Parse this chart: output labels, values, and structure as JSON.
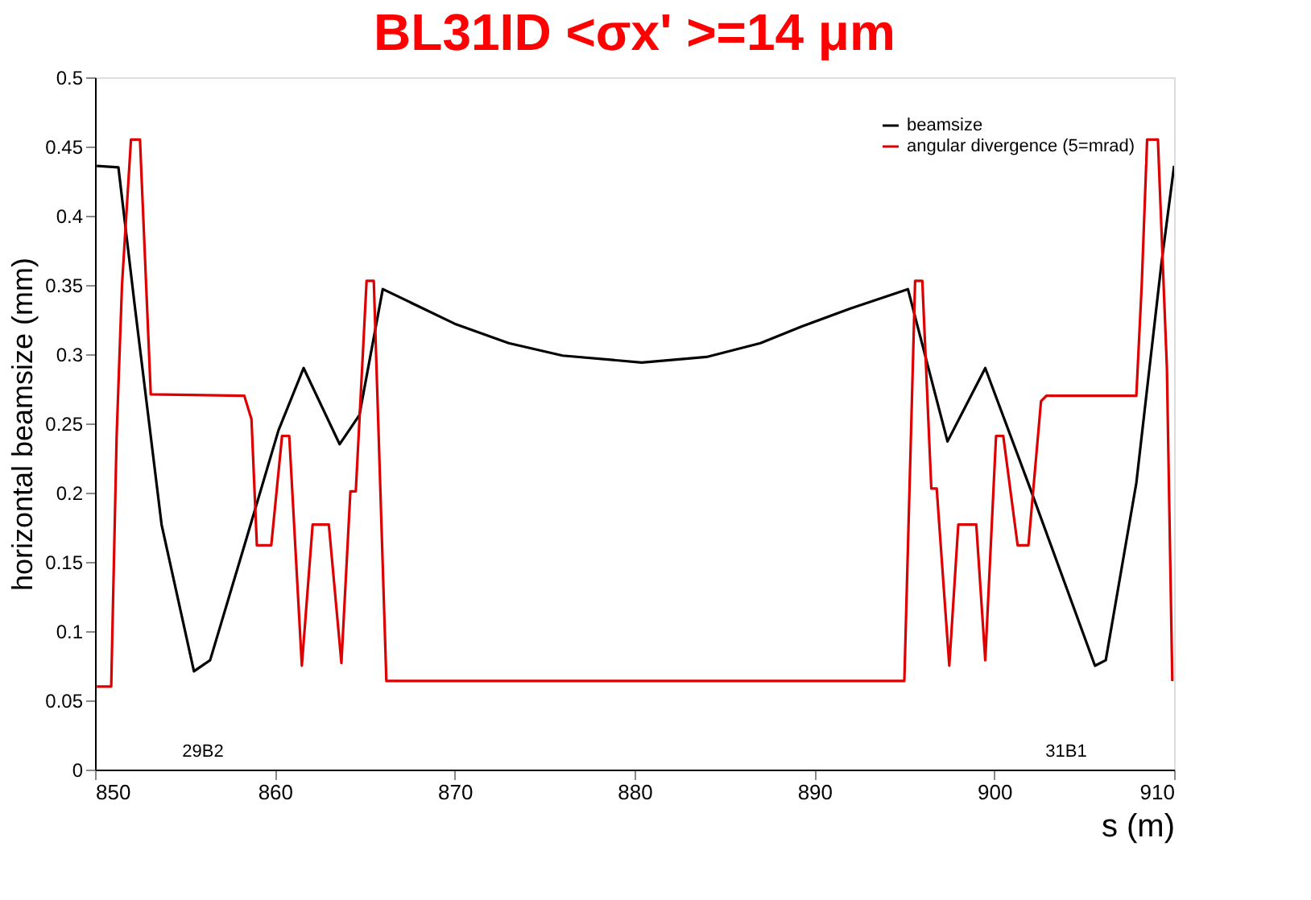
{
  "chart_data": {
    "type": "line",
    "title": "BL31ID    <σx' >=14 μm",
    "xlabel": "s (m)",
    "ylabel": "horizontal beamsize (mm)",
    "xlim": [
      850,
      910
    ],
    "xticks": [
      850,
      860,
      870,
      880,
      890,
      900,
      910
    ],
    "ylim": [
      0,
      0.5
    ],
    "yticks": [
      0,
      0.05,
      0.1,
      0.15,
      0.2,
      0.25,
      0.3,
      0.35,
      0.4,
      0.45,
      0.5
    ],
    "grid": false,
    "legend": "top right",
    "line_style": "solid",
    "annotations": [
      "29B2",
      "31B1"
    ],
    "series": [
      {
        "name": "beamsize",
        "color": "#000000",
        "x": [
          850.1,
          851.3,
          852.2,
          853.7,
          855.5,
          856.4,
          858.4,
          860.2,
          861.6,
          863.6,
          864.7,
          866.0,
          870.0,
          873.0,
          876.0,
          880.4,
          884.0,
          887.0,
          889.3,
          892.0,
          895.2,
          897.4,
          899.5,
          902.0,
          905.6,
          906.2,
          907.9,
          909.3,
          910.0
        ],
        "values": [
          0.436,
          0.435,
          0.336,
          0.177,
          0.071,
          0.079,
          0.166,
          0.245,
          0.29,
          0.235,
          0.256,
          0.347,
          0.322,
          0.308,
          0.299,
          0.294,
          0.298,
          0.308,
          0.32,
          0.333,
          0.347,
          0.237,
          0.29,
          0.203,
          0.075,
          0.079,
          0.207,
          0.366,
          0.436
        ]
      },
      {
        "name": "angular divergence (5=mrad)",
        "color": "#dd0000",
        "x": [
          850.1,
          850.9,
          851.2,
          851.5,
          852.0,
          852.5,
          853.1,
          858.3,
          858.7,
          859.0,
          859.8,
          860.4,
          860.8,
          861.5,
          862.1,
          863.0,
          863.7,
          864.2,
          864.5,
          865.1,
          865.5,
          866.2,
          895.0,
          895.6,
          896.0,
          896.5,
          896.8,
          897.5,
          898.0,
          899.0,
          899.5,
          900.1,
          900.5,
          901.3,
          901.9,
          902.6,
          902.9,
          907.9,
          908.2,
          908.5,
          909.1,
          909.6,
          909.9
        ],
        "values": [
          0.06,
          0.06,
          0.24,
          0.35,
          0.455,
          0.455,
          0.271,
          0.27,
          0.253,
          0.162,
          0.162,
          0.241,
          0.241,
          0.075,
          0.177,
          0.177,
          0.077,
          0.201,
          0.201,
          0.353,
          0.353,
          0.064,
          0.064,
          0.353,
          0.353,
          0.203,
          0.203,
          0.075,
          0.177,
          0.177,
          0.079,
          0.241,
          0.241,
          0.162,
          0.162,
          0.266,
          0.27,
          0.27,
          0.35,
          0.455,
          0.455,
          0.29,
          0.064
        ]
      }
    ]
  }
}
